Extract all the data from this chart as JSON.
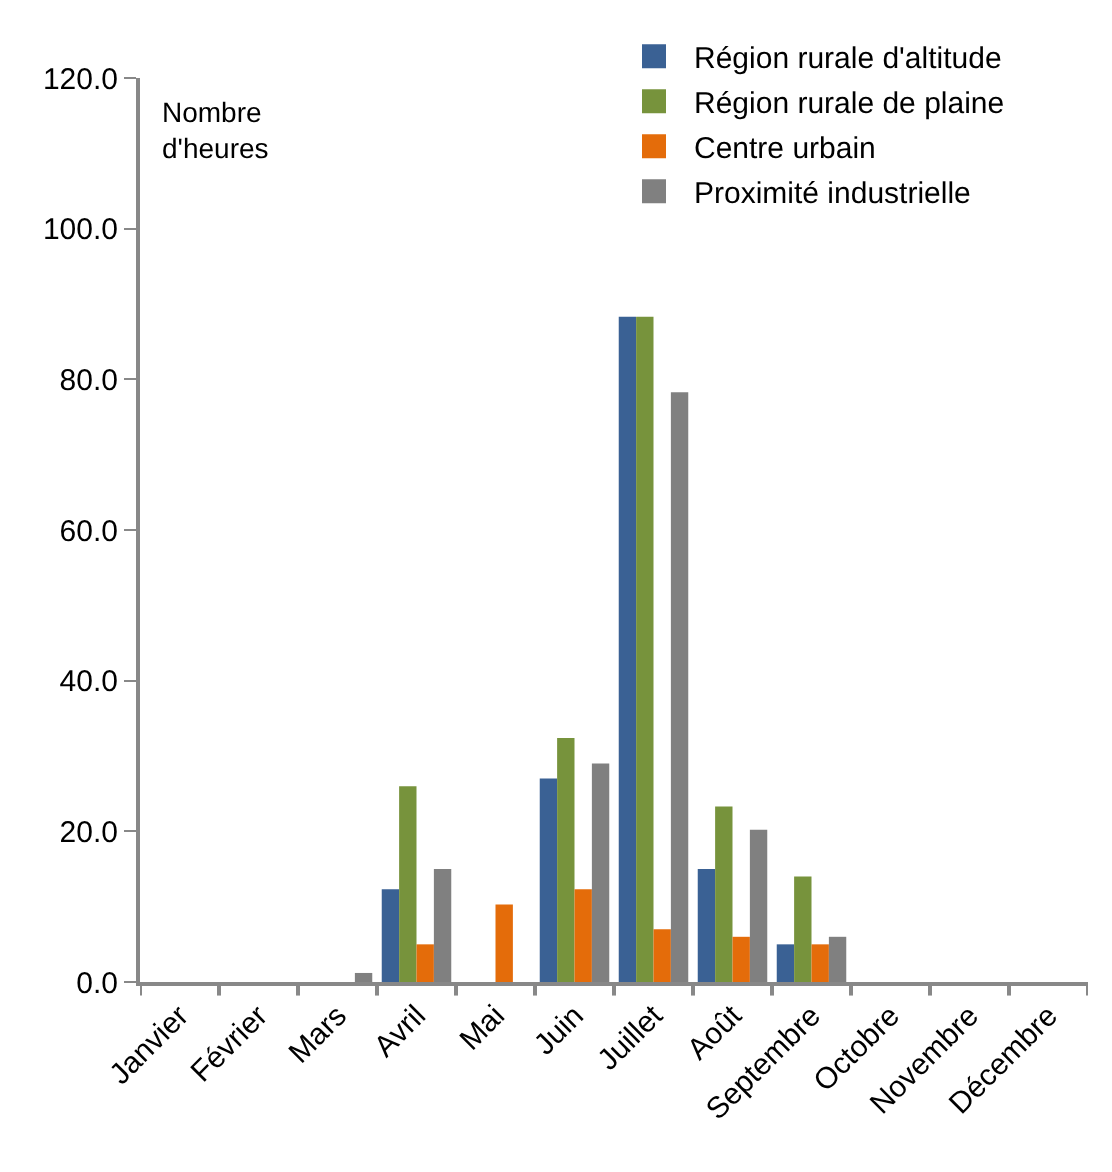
{
  "chart_data": {
    "type": "bar",
    "ylabel": "Nombre d'heures",
    "categories": [
      "Janvier",
      "Février",
      "Mars",
      "Avril",
      "Mai",
      "Juin",
      "Juillet",
      "Août",
      "Septembre",
      "Octobre",
      "Novembre",
      "Décembre"
    ],
    "series": [
      {
        "name": "Région rurale d'altitude",
        "color": "#3a6194",
        "values": [
          0,
          0,
          0,
          12.3,
          0,
          27,
          88.3,
          15,
          5,
          0,
          0,
          0
        ]
      },
      {
        "name": "Région rurale de plaine",
        "color": "#77933c",
        "values": [
          0,
          0,
          0,
          26,
          0,
          32.4,
          88.3,
          23.3,
          14,
          0,
          0,
          0
        ]
      },
      {
        "name": "Centre urbain",
        "color": "#e46c0a",
        "values": [
          0,
          0,
          0,
          5,
          10.3,
          12.3,
          7,
          6,
          5,
          0,
          0,
          0
        ]
      },
      {
        "name": "Proximité industrielle",
        "color": "#808080",
        "values": [
          0,
          0,
          1.2,
          15,
          0,
          29,
          78.3,
          20.2,
          6,
          0,
          0,
          0
        ]
      }
    ],
    "ylim": [
      0,
      120
    ],
    "yticks": [
      {
        "value": 0,
        "label": "0.0"
      },
      {
        "value": 20,
        "label": "20.0"
      },
      {
        "value": 40,
        "label": "40.0"
      },
      {
        "value": 60,
        "label": "60.0"
      },
      {
        "value": 80,
        "label": "80.0"
      },
      {
        "value": 100,
        "label": "100.0"
      },
      {
        "value": 120,
        "label": "120.0"
      }
    ],
    "grid": false,
    "legend": "top right"
  }
}
